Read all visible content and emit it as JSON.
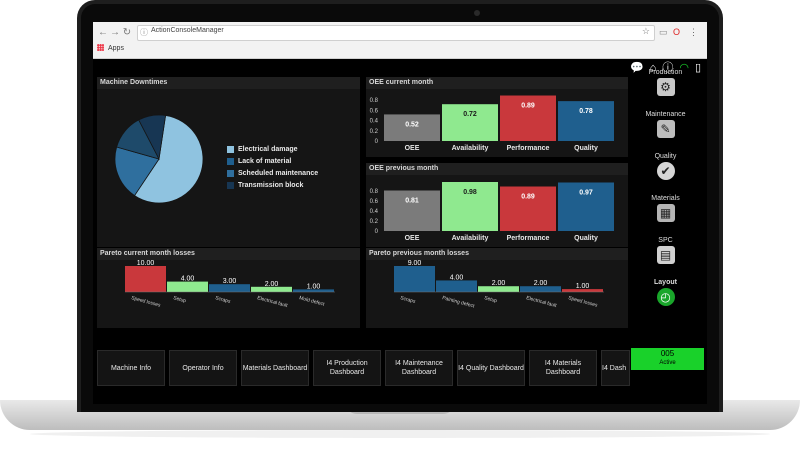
{
  "browser": {
    "url": "ActionConsoleManager",
    "bookmarks_label": "Apps"
  },
  "colors": {
    "accent_green": "#19d12a",
    "oee_gray": "#7b7b7b",
    "availability_green": "#8fe98f",
    "performance_red": "#c9383c",
    "quality_blue": "#1f5f8e",
    "pie_light": "#8fc3e0",
    "pie_mid": "#2f6f9e",
    "pie_dark": "#1e4a6a",
    "pie_darkest": "#173653"
  },
  "panels": {
    "downtimes": {
      "title": "Machine Downtimes",
      "legend": [
        {
          "label": "Electrical damage",
          "color": "#8fc3e0"
        },
        {
          "label": "Lack of material",
          "color": "#1f5f8e"
        },
        {
          "label": "Scheduled maintenance",
          "color": "#2f6f9e"
        },
        {
          "label": "Transmission block",
          "color": "#173653"
        }
      ]
    },
    "oee_current": {
      "title": "OEE current month"
    },
    "oee_previous": {
      "title": "OEE previous month"
    },
    "pareto_current": {
      "title": "Pareto current month losses"
    },
    "pareto_previous": {
      "title": "Pareto previous month losses"
    }
  },
  "chart_data": [
    {
      "type": "pie",
      "title": "Machine Downtimes",
      "categories": [
        "Electrical damage",
        "Lack of material",
        "Scheduled maintenance",
        "Transmission block"
      ],
      "values": [
        57,
        20,
        13,
        10
      ]
    },
    {
      "type": "bar",
      "title": "OEE current month",
      "categories": [
        "OEE",
        "Availability",
        "Performance",
        "Quality"
      ],
      "values": [
        0.52,
        0.72,
        0.89,
        0.78
      ],
      "ylim": [
        0,
        0.9
      ],
      "yticks": [
        "0",
        "0.2",
        "0.4",
        "0.6",
        "0.8"
      ]
    },
    {
      "type": "bar",
      "title": "OEE previous month",
      "categories": [
        "OEE",
        "Availability",
        "Performance",
        "Quality"
      ],
      "values": [
        0.81,
        0.98,
        0.89,
        0.97
      ],
      "ylim": [
        0,
        1.0
      ],
      "yticks": [
        "0",
        "0.2",
        "0.4",
        "0.6",
        "0.8"
      ]
    },
    {
      "type": "bar",
      "title": "Pareto current month losses",
      "categories": [
        "Speed losses",
        "Setup",
        "Scraps",
        "Electrical fault",
        "Mold defect"
      ],
      "values": [
        10.0,
        4.0,
        3.0,
        2.0,
        1.0
      ],
      "ylim": [
        0,
        10
      ]
    },
    {
      "type": "bar",
      "title": "Pareto previous month losses",
      "categories": [
        "Scraps",
        "Painting defect",
        "Setup",
        "Electrical fault",
        "Speed losses"
      ],
      "values": [
        9.0,
        4.0,
        2.0,
        2.0,
        1.0
      ],
      "ylim": [
        0,
        9
      ]
    }
  ],
  "sidebar": {
    "items": [
      {
        "label": "Production",
        "icon": "gear-icon"
      },
      {
        "label": "Maintenance",
        "icon": "wrench-icon"
      },
      {
        "label": "Quality",
        "icon": "check-icon"
      },
      {
        "label": "Materials",
        "icon": "boxes-icon"
      },
      {
        "label": "SPC",
        "icon": "spc-chart-icon"
      },
      {
        "label": "Layout",
        "icon": "gauge-icon"
      }
    ]
  },
  "status": {
    "code": "005",
    "label": "Active"
  },
  "buttons": [
    {
      "label": "Machine Info"
    },
    {
      "label": "Operator Info"
    },
    {
      "label": "Materials Dashboard"
    },
    {
      "label": "I4 Production Dashboard"
    },
    {
      "label": "I4 Maintenance Dashboard"
    },
    {
      "label": "I4 Quality Dashboard"
    },
    {
      "label": "I4 Materials Dashboard"
    },
    {
      "label": "I4 Dash"
    }
  ]
}
